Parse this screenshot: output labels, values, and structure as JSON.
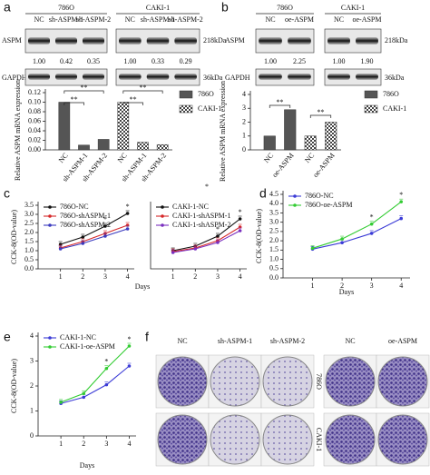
{
  "blots": [
    {
      "panel": "a",
      "rows": [
        "ASPM",
        "GAPDH"
      ],
      "sizes": [
        "218kDa",
        "36kDa"
      ],
      "groups": [
        {
          "name": "786O",
          "lanes": [
            "NC",
            "sh-ASPM-1",
            "sh-ASPM-2"
          ],
          "ratios": [
            "1.00",
            "0.42",
            "0.35"
          ]
        },
        {
          "name": "CAKI-1",
          "lanes": [
            "NC",
            "sh-ASPM-1",
            "sh-ASPM-2"
          ],
          "ratios": [
            "1.00",
            "0.33",
            "0.29"
          ]
        }
      ]
    },
    {
      "panel": "b",
      "rows": [
        "ASPM",
        "GAPDH"
      ],
      "sizes": [
        "218kDa",
        "36kDa"
      ],
      "groups": [
        {
          "name": "786O",
          "lanes": [
            "NC",
            "oe-ASPM"
          ],
          "ratios": [
            "1.00",
            "2.25"
          ]
        },
        {
          "name": "CAKI-1",
          "lanes": [
            "NC",
            "oe-ASPM"
          ],
          "ratios": [
            "1.00",
            "1.90"
          ]
        }
      ]
    }
  ],
  "chart_data": [
    {
      "type": "bar",
      "ylabel": "Relative ASPM mRNA expression",
      "categories": [
        "NC",
        "sh-ASPM-1",
        "sh-ASPM-2",
        "NC",
        "sh-ASPM-1",
        "sh-ASPM-2"
      ],
      "series": [
        {
          "name": "786O",
          "color": "#555555",
          "values": [
            0.1,
            0.01,
            0.022,
            null,
            null,
            null
          ]
        },
        {
          "name": "CAKI-1",
          "color": "#555555",
          "pattern": "checker",
          "values": [
            null,
            null,
            null,
            0.1,
            0.016,
            0.011
          ]
        }
      ],
      "ylim": [
        0,
        0.12
      ],
      "yticks": [
        {
          "value": 0,
          "label": "0.00"
        },
        0.02,
        0.04,
        0.06,
        0.08,
        {
          "value": 0.1,
          "label": "0.10"
        },
        0.12
      ],
      "annotations": [
        "**",
        "**",
        "**",
        "**"
      ]
    },
    {
      "type": "bar",
      "ylabel": "Relative ASPM mRNA expression",
      "categories": [
        "NC",
        "oe-ASPM",
        "NC",
        "oe-ASPM"
      ],
      "series": [
        {
          "name": "786O",
          "color": "#555555",
          "values": [
            1.0,
            2.9,
            null,
            null
          ]
        },
        {
          "name": "CAKI-1",
          "color": "#555555",
          "pattern": "checker",
          "values": [
            null,
            null,
            1.0,
            2.0
          ]
        }
      ],
      "ylim": [
        0,
        4
      ],
      "yticks": [
        0,
        1,
        2,
        3,
        4
      ],
      "annotations": [
        "**",
        "**"
      ]
    },
    {
      "type": "line",
      "panel": "c",
      "ylabel": "CCK-8(OD-value)",
      "xlabel": "Days",
      "x": [
        1,
        2,
        3,
        4
      ],
      "xlim": [
        0,
        4.3
      ],
      "xticks": [
        1,
        2,
        3,
        4
      ],
      "ylim": [
        0,
        3.5
      ],
      "yticks": [
        {
          "value": 0,
          "label": "0.0"
        },
        0.5,
        {
          "value": 1,
          "label": "1.0"
        },
        1.5,
        {
          "value": 2,
          "label": "2.0"
        },
        2.5,
        {
          "value": 3,
          "label": "3.0"
        },
        3.5
      ],
      "series": [
        {
          "name": "786O-NC",
          "color": "#111111",
          "values": [
            1.35,
            1.75,
            2.35,
            3.05
          ]
        },
        {
          "name": "786O-shASPM-1",
          "color": "#d62728",
          "values": [
            1.15,
            1.5,
            1.95,
            2.4
          ]
        },
        {
          "name": "786O-shASPM-2",
          "color": "#3b3bbf",
          "values": [
            1.1,
            1.4,
            1.8,
            2.2
          ]
        }
      ],
      "annotations": [
        "*",
        "*"
      ]
    },
    {
      "type": "line",
      "x": [
        1,
        2,
        3,
        4
      ],
      "xlim": [
        0,
        4.3
      ],
      "xticks": [
        1,
        2,
        3,
        4
      ],
      "ylim": [
        0,
        3.5
      ],
      "series": [
        {
          "name": "CAKI-1-NC",
          "color": "#111111",
          "values": [
            1.0,
            1.25,
            1.8,
            2.75
          ]
        },
        {
          "name": "CAKI-1-shASPM-1",
          "color": "#d62728",
          "values": [
            0.95,
            1.15,
            1.55,
            2.3
          ]
        },
        {
          "name": "CAKI-1-shASPM-2",
          "color": "#7a2fbf",
          "values": [
            0.9,
            1.1,
            1.45,
            2.1
          ]
        }
      ],
      "annotations": [
        "*",
        "*"
      ]
    },
    {
      "type": "line",
      "panel": "d",
      "ylabel": "CCK-8(OD-value)",
      "xlabel": "Days",
      "x": [
        1,
        2,
        3,
        4
      ],
      "xlim": [
        0,
        4.3
      ],
      "xticks": [
        1,
        2,
        3,
        4
      ],
      "ylim": [
        0,
        4.5
      ],
      "yticks": [
        {
          "value": 0,
          "label": "0.0"
        },
        0.5,
        {
          "value": 1,
          "label": "1.0"
        },
        1.5,
        {
          "value": 2,
          "label": "2.0"
        },
        2.5,
        {
          "value": 3,
          "label": "3.0"
        },
        3.5,
        {
          "value": 4,
          "label": "4.0"
        },
        4.5
      ],
      "series": [
        {
          "name": "786O-NC",
          "color": "#3b3bd6",
          "values": [
            1.55,
            1.9,
            2.4,
            3.2
          ]
        },
        {
          "name": "786O-oe-ASPM",
          "color": "#33cc33",
          "values": [
            1.6,
            2.1,
            2.9,
            4.1
          ]
        }
      ],
      "annotations": [
        "*",
        "*"
      ]
    },
    {
      "type": "line",
      "panel": "e",
      "ylabel": "CCK-8(OD-value)",
      "xlabel": "Days",
      "x": [
        1,
        2,
        3,
        4
      ],
      "xlim": [
        0,
        4.3
      ],
      "xticks": [
        1,
        2,
        3,
        4
      ],
      "ylim": [
        0,
        4
      ],
      "yticks": [
        0,
        1,
        2,
        3,
        4
      ],
      "series": [
        {
          "name": "CAKI-1-NC",
          "color": "#3b3bd6",
          "values": [
            1.3,
            1.55,
            2.05,
            2.8
          ]
        },
        {
          "name": "CAKI-1-oe-ASPM",
          "color": "#33cc33",
          "values": [
            1.35,
            1.7,
            2.7,
            3.6
          ]
        }
      ],
      "annotations": [
        "*",
        "*"
      ]
    }
  ],
  "colony": {
    "panel": "f",
    "rows": [
      "786O",
      "CAKI-1"
    ],
    "groups": [
      {
        "lanes": [
          "NC",
          "sh-ASPM-1",
          "sh-ASPM-2"
        ]
      },
      {
        "lanes": [
          "NC",
          "oe-ASPM"
        ]
      }
    ]
  },
  "note_mark": "*"
}
